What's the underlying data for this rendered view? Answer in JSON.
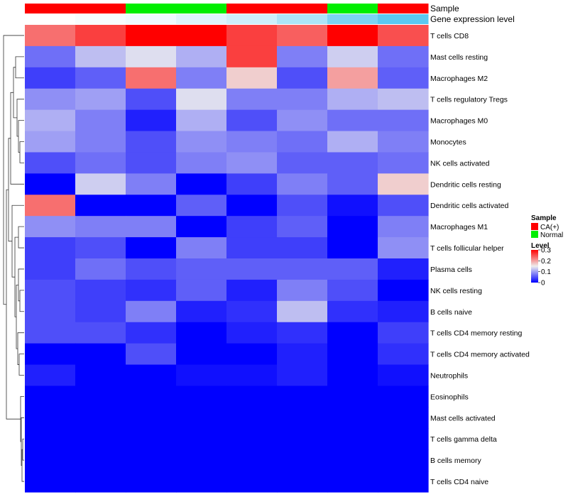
{
  "chart_data": {
    "type": "heatmap",
    "row_labels": [
      "T cells CD8",
      "Mast cells resting",
      "Macrophages M2",
      "T cells regulatory  Tregs",
      "Macrophages M0",
      "Monocytes",
      "NK cells activated",
      "Dendritic cells resting",
      "Dendritic cells activated",
      "Macrophages M1",
      "T cells follicular helper",
      "Plasma cells",
      "NK cells resting",
      "B cells naive",
      "T cells CD4 memory resting",
      "T cells CD4 memory activated",
      "Neutrophils",
      "Eosinophils",
      "Mast cells activated",
      "T cells gamma delta",
      "B cells memory",
      "T cells CD4 naive"
    ],
    "values": [
      [
        0.23,
        0.26,
        0.3,
        0.3,
        0.26,
        0.24,
        0.3,
        0.25
      ],
      [
        0.07,
        0.12,
        0.14,
        0.11,
        0.26,
        0.08,
        0.13,
        0.07
      ],
      [
        0.04,
        0.06,
        0.23,
        0.08,
        0.17,
        0.05,
        0.2,
        0.06
      ],
      [
        0.09,
        0.1,
        0.05,
        0.14,
        0.08,
        0.08,
        0.11,
        0.12
      ],
      [
        0.11,
        0.08,
        0.02,
        0.11,
        0.05,
        0.09,
        0.07,
        0.07
      ],
      [
        0.1,
        0.08,
        0.05,
        0.09,
        0.08,
        0.07,
        0.11,
        0.08
      ],
      [
        0.05,
        0.07,
        0.05,
        0.08,
        0.09,
        0.06,
        0.06,
        0.07
      ],
      [
        0.0,
        0.13,
        0.08,
        0.0,
        0.04,
        0.08,
        0.06,
        0.17
      ],
      [
        0.23,
        0.0,
        0.0,
        0.06,
        0.0,
        0.05,
        0.01,
        0.05
      ],
      [
        0.09,
        0.08,
        0.08,
        0.0,
        0.04,
        0.06,
        0.0,
        0.08
      ],
      [
        0.04,
        0.05,
        0.0,
        0.08,
        0.04,
        0.04,
        0.0,
        0.09
      ],
      [
        0.04,
        0.07,
        0.05,
        0.06,
        0.06,
        0.06,
        0.06,
        0.02
      ],
      [
        0.05,
        0.04,
        0.03,
        0.06,
        0.02,
        0.08,
        0.05,
        0.0
      ],
      [
        0.05,
        0.04,
        0.08,
        0.02,
        0.03,
        0.12,
        0.03,
        0.02
      ],
      [
        0.05,
        0.05,
        0.03,
        0.0,
        0.02,
        0.03,
        0.0,
        0.04
      ],
      [
        0.0,
        0.0,
        0.05,
        0.0,
        0.0,
        0.02,
        0.0,
        0.03
      ],
      [
        0.02,
        0.0,
        0.0,
        0.01,
        0.01,
        0.02,
        0.0,
        0.01
      ],
      [
        0.0,
        0.0,
        0.0,
        0.0,
        0.0,
        0.0,
        0.0,
        0.0
      ],
      [
        0.0,
        0.0,
        0.0,
        0.0,
        0.0,
        0.0,
        0.0,
        0.0
      ],
      [
        0.0,
        0.0,
        0.0,
        0.0,
        0.0,
        0.0,
        0.0,
        0.0
      ],
      [
        0.0,
        0.0,
        0.0,
        0.0,
        0.0,
        0.0,
        0.0,
        0.0
      ],
      [
        0.0,
        0.0,
        0.0,
        0.0,
        0.0,
        0.0,
        0.0,
        0.0
      ]
    ],
    "annotations": {
      "sample": {
        "label": "Sample",
        "values": [
          "CA(+)",
          "CA(+)",
          "Normal",
          "Normal",
          "CA(+)",
          "CA(+)",
          "Normal",
          "CA(+)"
        ]
      },
      "expression": {
        "label": "Gene expression level",
        "values": [
          0.0,
          0.05,
          0.1,
          0.2,
          0.3,
          0.5,
          0.8,
          1.0
        ]
      }
    },
    "legend": {
      "placement": "right",
      "sample_title": "Sample",
      "sample_entries": [
        {
          "label": "CA(+)",
          "color": "#FF0000"
        },
        {
          "label": "Normal",
          "color": "#00EE00"
        }
      ],
      "level_title": "Level",
      "level_ticks": [
        "0.3",
        "0.2",
        "0.1",
        "0"
      ],
      "level_tick_values": [
        0.3,
        0.2,
        0.1,
        0
      ]
    },
    "color_scale": {
      "domain": [
        0,
        0.15,
        0.3
      ],
      "colors": [
        "#0000FF",
        "#EEEEEE",
        "#FF0000"
      ]
    },
    "expression_scale": {
      "domain": [
        0,
        1
      ],
      "colors": [
        "#FFFFFF",
        "#5BC8F0"
      ]
    },
    "row_dendrogram": true
  }
}
